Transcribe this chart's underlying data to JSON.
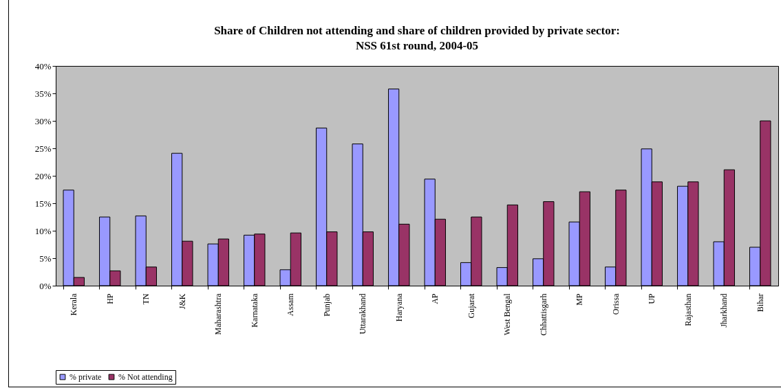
{
  "chart_data": {
    "type": "bar",
    "title": "Share of Children not attending and share of children provided by private sector:\nNSS 61st round, 2004-05",
    "categories": [
      "Kerala",
      "HP",
      "TN",
      "J&K",
      "Maharashtra",
      "Karnataka",
      "Assam",
      "Punjab",
      "Uttarakhand",
      "Haryana",
      "AP",
      "Gujarat",
      "West Bengal",
      "Chhattisgarh",
      "MP",
      "Orissa",
      "UP",
      "Rajasthan",
      "Jharkhand",
      "Bihar"
    ],
    "series": [
      {
        "name": "% private",
        "color": "#9999ff",
        "values": [
          17.4,
          12.5,
          12.7,
          24.1,
          7.6,
          9.2,
          2.9,
          28.7,
          25.8,
          35.8,
          19.4,
          4.2,
          3.3,
          4.9,
          11.6,
          3.4,
          24.9,
          18.1,
          8.0,
          7.0
        ]
      },
      {
        "name": "% Not attending",
        "color": "#993366",
        "values": [
          1.5,
          2.7,
          3.4,
          8.1,
          8.5,
          9.4,
          9.6,
          9.8,
          9.8,
          11.2,
          12.1,
          12.5,
          14.7,
          15.3,
          17.1,
          17.4,
          18.9,
          18.9,
          21.1,
          30.0
        ]
      }
    ],
    "ylim": [
      0,
      40
    ],
    "yticks": [
      {
        "value": 0,
        "label": "0%"
      },
      {
        "value": 5,
        "label": "5%"
      },
      {
        "value": 10,
        "label": "10%"
      },
      {
        "value": 15,
        "label": "15%"
      },
      {
        "value": 20,
        "label": "20%"
      },
      {
        "value": 25,
        "label": "25%"
      },
      {
        "value": 30,
        "label": "30%"
      },
      {
        "value": 35,
        "label": "35%"
      },
      {
        "value": 40,
        "label": "40%"
      }
    ],
    "grid": false,
    "legend": "bottom"
  }
}
